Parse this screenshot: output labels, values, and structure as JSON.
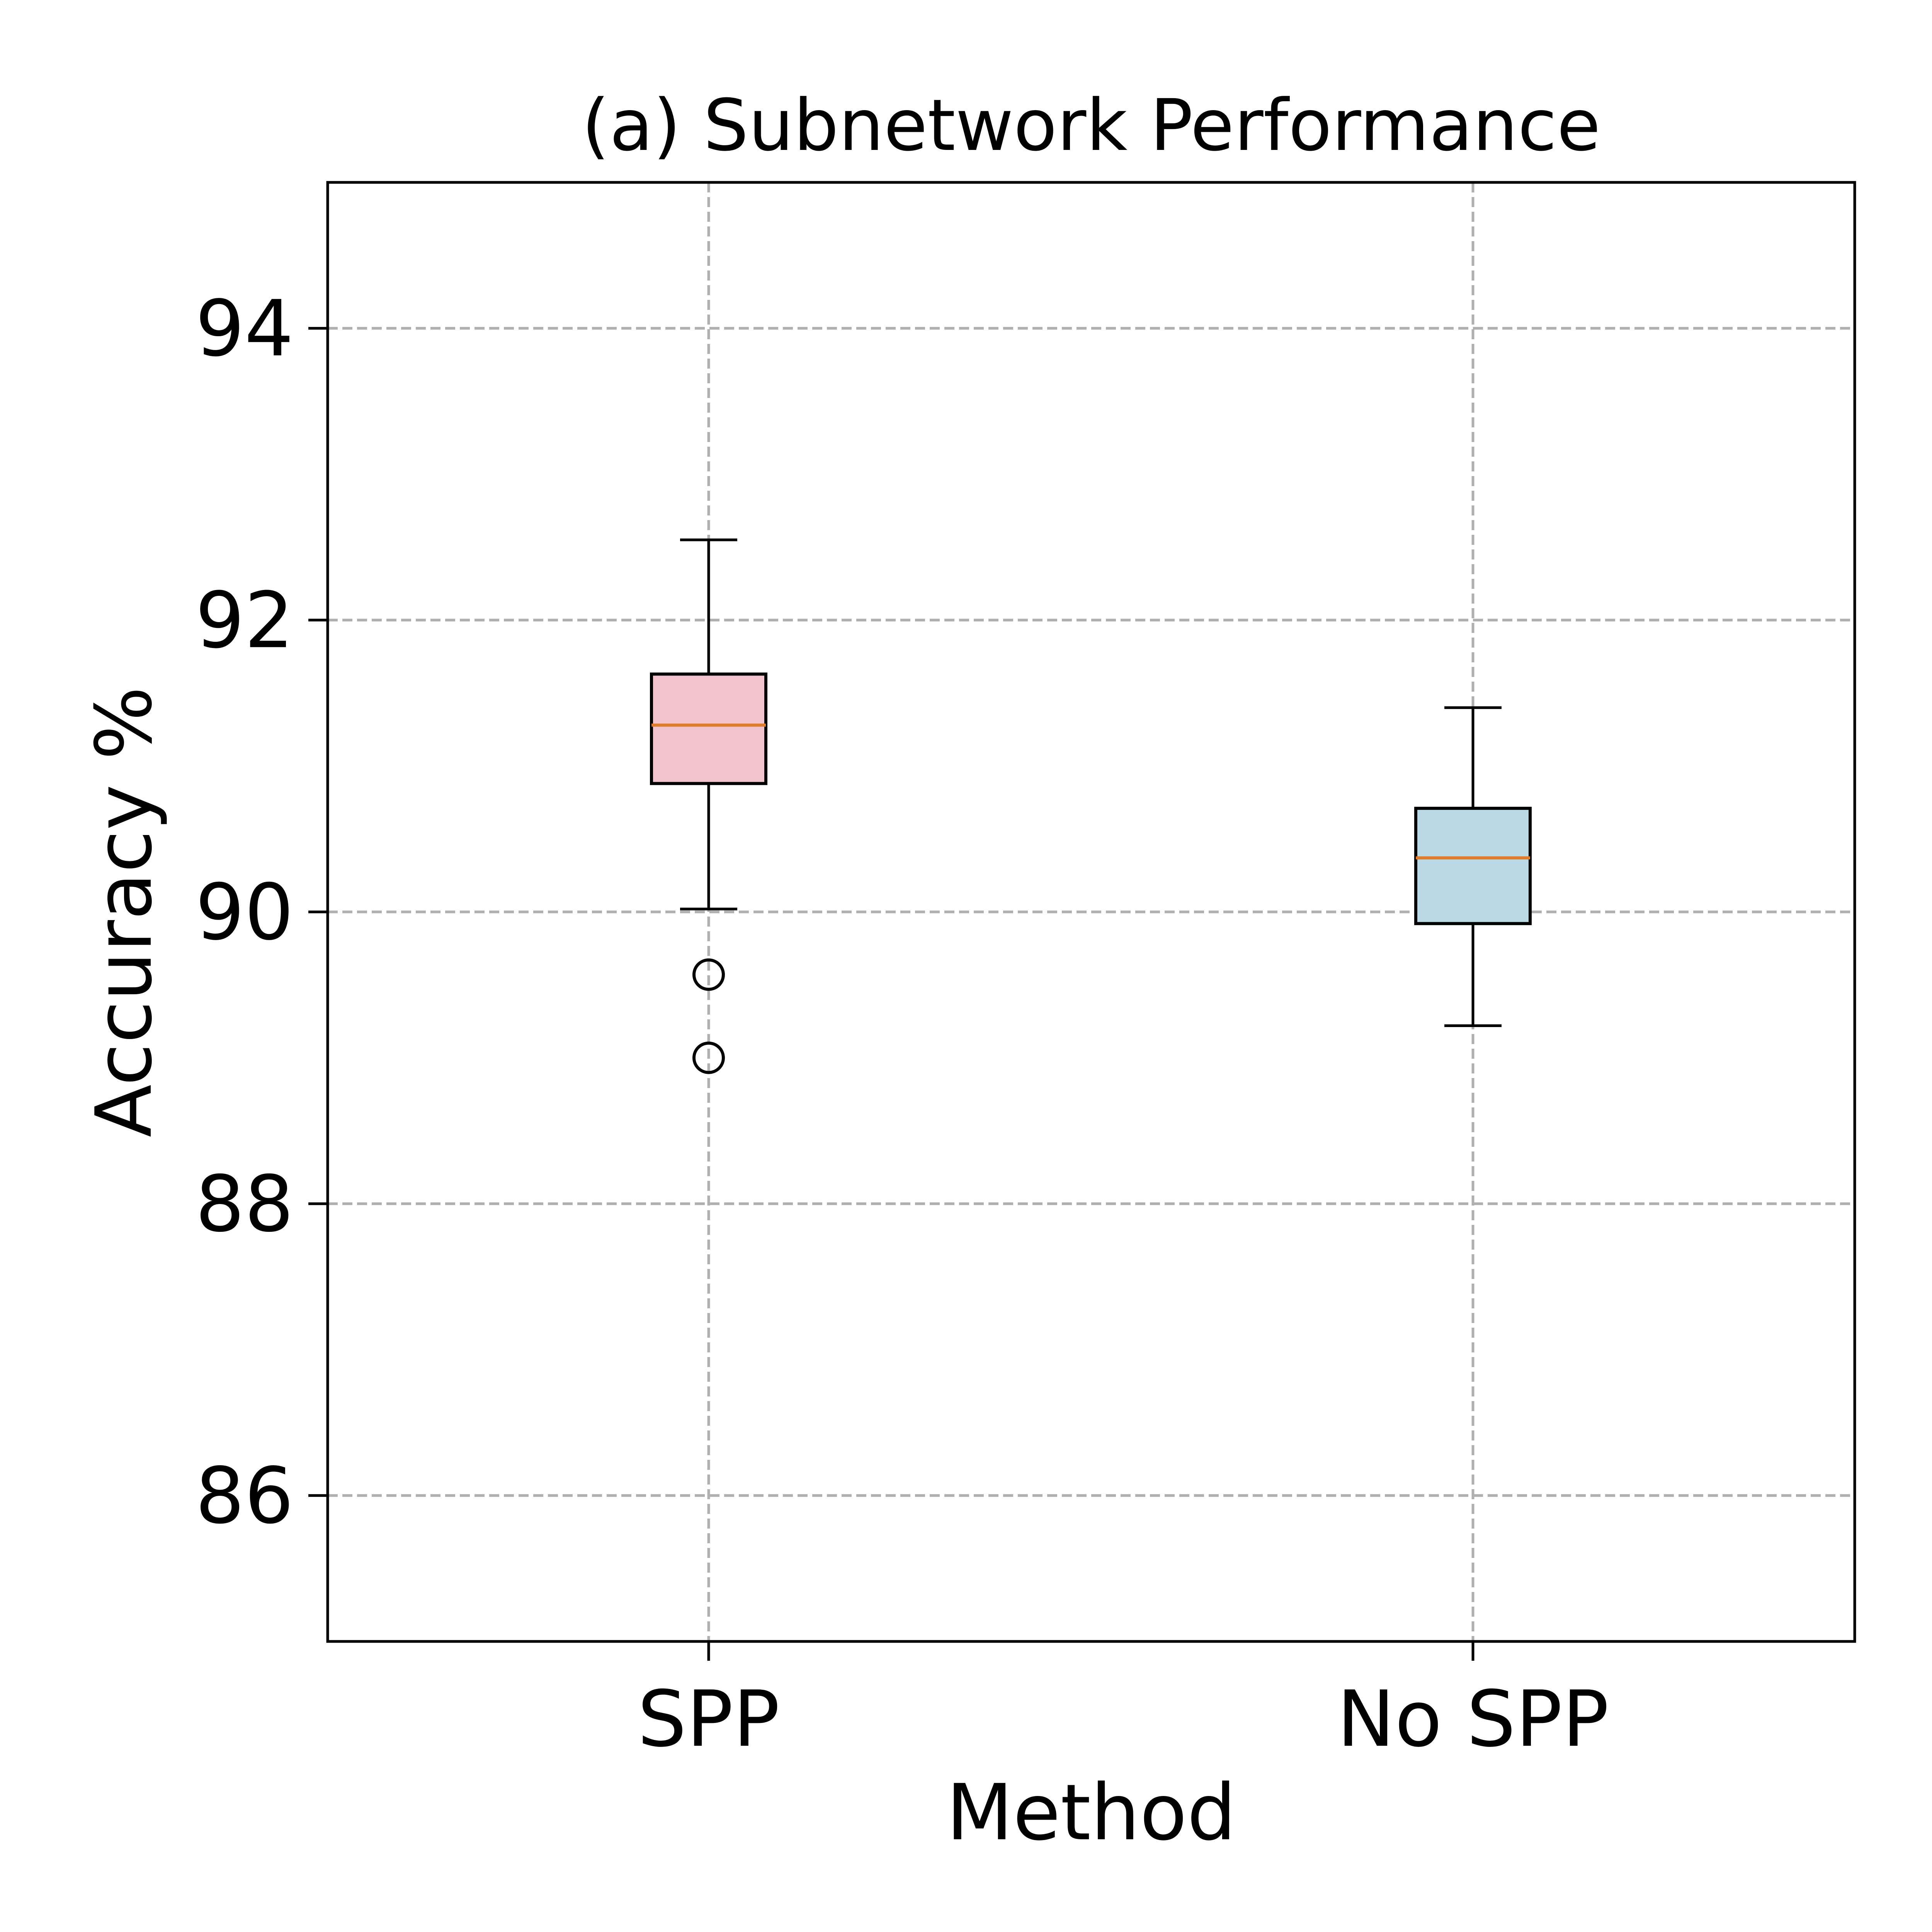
{
  "chart_data": {
    "type": "box",
    "title": "(a) Subnetwork Performance",
    "xlabel": "Method",
    "ylabel": "Accuracy %",
    "ylim": [
      85,
      95
    ],
    "yticks": [
      86,
      88,
      90,
      92,
      94
    ],
    "ytick_labels": [
      "86",
      "88",
      "90",
      "92",
      "94"
    ],
    "categories": [
      "SPP",
      "No SPP"
    ],
    "grid": true,
    "legend": "none",
    "boxes": [
      {
        "category": "SPP",
        "whisker_low": 90.02,
        "q1": 90.88,
        "median": 91.28,
        "q3": 91.63,
        "whisker_high": 92.55,
        "outliers": [
          89.57,
          89.0
        ],
        "color": "#f0c3cd"
      },
      {
        "category": "No SPP",
        "whisker_low": 89.22,
        "q1": 89.92,
        "median": 90.37,
        "q3": 90.71,
        "whisker_high": 91.4,
        "outliers": [],
        "color": "#bad9e5"
      }
    ],
    "colors": {
      "median_line": "#e07b2a",
      "grid": "#b0b0b0",
      "axis": "#000000"
    }
  }
}
